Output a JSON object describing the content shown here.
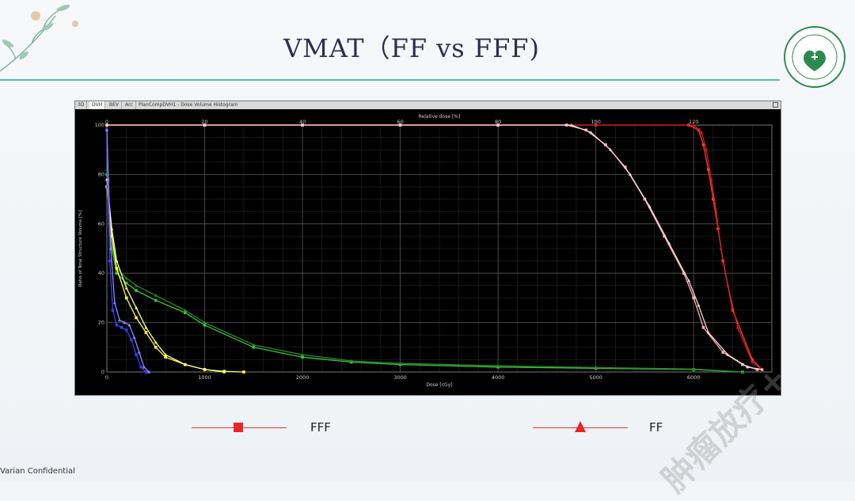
{
  "slide": {
    "title": "VMAT（FF vs FFF)",
    "footer": "Varian Confidential",
    "watermark": "肿瘤放疗+"
  },
  "window": {
    "tabs": [
      "3D",
      "DVH",
      "BEV",
      "Arc"
    ],
    "active_tab": "DVH",
    "title": "PlanCompDVH1 - Dose Volume Histogram"
  },
  "legend": [
    {
      "label": "FFF",
      "marker": "square",
      "color": "#e8262a"
    },
    {
      "label": "FF",
      "marker": "triangle",
      "color": "#e8262a"
    }
  ],
  "chart_data": {
    "type": "line",
    "title": "",
    "xlabel": "Dose [cGy]",
    "x2label": "Relative dose [%]",
    "ylabel": "Ratio of Total Structure Volume [%]",
    "xlim": [
      0,
      6800
    ],
    "x2lim": [
      0,
      136
    ],
    "ylim": [
      0,
      100
    ],
    "x_ticks": [
      0,
      1000,
      2000,
      3000,
      4000,
      5000,
      6000
    ],
    "x2_ticks": [
      0,
      20,
      40,
      60,
      80,
      100,
      120
    ],
    "y_ticks": [
      0,
      20,
      40,
      60,
      80,
      100
    ],
    "grid": true,
    "background": "#000000",
    "series": [
      {
        "color": "#ff3b3b",
        "marker": "square",
        "x": [
          0,
          1000,
          2000,
          3000,
          4000,
          5000,
          5950,
          6050,
          6100,
          6150,
          6200,
          6250,
          6300,
          6400,
          6600,
          6700
        ],
        "y": [
          100,
          100,
          100,
          100,
          100,
          100,
          100,
          98,
          92,
          82,
          70,
          58,
          45,
          25,
          5,
          1
        ]
      },
      {
        "color": "#d81e1e",
        "marker": "triangle",
        "x": [
          0,
          1000,
          2000,
          3000,
          4000,
          5000,
          6000,
          6080,
          6130,
          6180,
          6230,
          6280,
          6350,
          6450,
          6600,
          6700
        ],
        "y": [
          100,
          100,
          100,
          100,
          100,
          100,
          100,
          97,
          90,
          78,
          65,
          50,
          35,
          18,
          4,
          1
        ]
      },
      {
        "color": "#ffb0b5",
        "marker": "square",
        "x": [
          0,
          1000,
          2000,
          3000,
          4000,
          4700,
          4900,
          5100,
          5300,
          5500,
          5700,
          5900,
          6000,
          6100,
          6300,
          6500,
          6650
        ],
        "y": [
          100,
          100,
          100,
          100,
          100,
          100,
          98,
          92,
          83,
          70,
          55,
          40,
          30,
          18,
          8,
          3,
          1
        ]
      },
      {
        "color": "#ffd6d8",
        "marker": "triangle",
        "x": [
          0,
          1000,
          2000,
          3000,
          4000,
          4750,
          4950,
          5150,
          5350,
          5550,
          5750,
          5950,
          6050,
          6150,
          6350,
          6550,
          6700
        ],
        "y": [
          100,
          100,
          100,
          100,
          100,
          100,
          97,
          90,
          80,
          67,
          52,
          37,
          27,
          16,
          7,
          2,
          1
        ]
      },
      {
        "color": "#3cc43c",
        "marker": "square",
        "x": [
          0,
          50,
          100,
          200,
          300,
          500,
          800,
          1000,
          1500,
          2000,
          2500,
          3000,
          4000,
          5000,
          6000,
          6500
        ],
        "y": [
          80,
          50,
          40,
          36,
          33,
          29,
          24,
          19,
          10,
          6,
          4,
          3,
          2,
          1.5,
          1,
          0
        ]
      },
      {
        "color": "#2a8a2a",
        "marker": "triangle",
        "x": [
          0,
          50,
          100,
          200,
          300,
          500,
          800,
          1000,
          1500,
          2000,
          2500,
          3000,
          4000,
          5000,
          6000,
          6500
        ],
        "y": [
          82,
          52,
          42,
          38,
          35,
          31,
          25,
          20,
          11,
          7,
          4.5,
          3.5,
          2.5,
          1.8,
          1.2,
          0
        ]
      },
      {
        "color": "#ffff33",
        "marker": "square",
        "x": [
          0,
          50,
          100,
          200,
          300,
          400,
          500,
          600,
          800,
          1000,
          1200,
          1400
        ],
        "y": [
          75,
          55,
          42,
          30,
          22,
          16,
          10,
          6,
          3,
          1,
          0.3,
          0
        ]
      },
      {
        "color": "#ffffa0",
        "marker": "triangle",
        "x": [
          0,
          50,
          100,
          200,
          300,
          400,
          500,
          600,
          800,
          1000,
          1200
        ],
        "y": [
          78,
          58,
          45,
          34,
          26,
          18,
          12,
          7,
          3,
          1,
          0
        ]
      },
      {
        "color": "#3a3aff",
        "marker": "square",
        "x": [
          0,
          10,
          30,
          60,
          100,
          150,
          200,
          250,
          300,
          350,
          400
        ],
        "y": [
          98,
          75,
          45,
          25,
          19,
          18,
          17,
          13,
          7,
          2,
          0
        ]
      },
      {
        "color": "#8a8aff",
        "marker": "triangle",
        "x": [
          0,
          15,
          40,
          80,
          130,
          180,
          230,
          280,
          330,
          380,
          430
        ],
        "y": [
          98,
          78,
          50,
          28,
          21,
          20,
          19,
          14,
          8,
          2,
          0
        ]
      }
    ]
  }
}
